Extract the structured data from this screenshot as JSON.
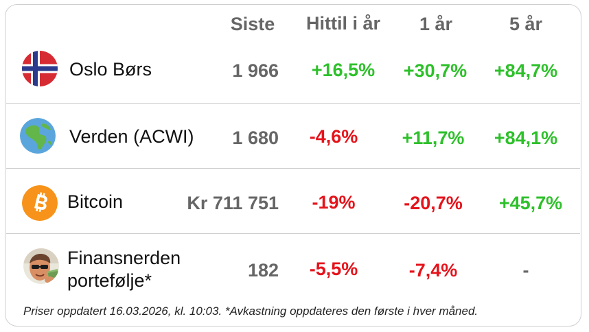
{
  "headers": {
    "last": "Siste",
    "ytd": "Hittil i år",
    "one_year": "1 år",
    "five_year": "5 år"
  },
  "rows": [
    {
      "name": "Oslo Børs",
      "icon": "norway-flag-icon",
      "last": "1 966",
      "ytd": "+16,5%",
      "one_year": "+30,7%",
      "five_year": "+84,7%"
    },
    {
      "name": "Verden (ACWI)",
      "icon": "globe-icon",
      "last": "1 680",
      "ytd": "-4,6%",
      "one_year": "+11,7%",
      "five_year": "+84,1%"
    },
    {
      "name": "Bitcoin",
      "icon": "bitcoin-icon",
      "last": "Kr 711 751",
      "ytd": "-19%",
      "one_year": "-20,7%",
      "five_year": "+45,7%"
    },
    {
      "name_line1": "Finansnerden",
      "name_line2": "portefølje*",
      "icon": "avatar-icon",
      "last": "182",
      "ytd": "-5,5%",
      "one_year": "-7,4%",
      "five_year": "-"
    }
  ],
  "footnote": "Priser oppdatert 16.03.2026, kl. 10:03. *Avkastning oppdateres den første i hver måned.",
  "colors": {
    "positive": "#2ec02b",
    "negative": "#e5131b",
    "neutral": "#666666",
    "border": "#cfcfcf"
  }
}
